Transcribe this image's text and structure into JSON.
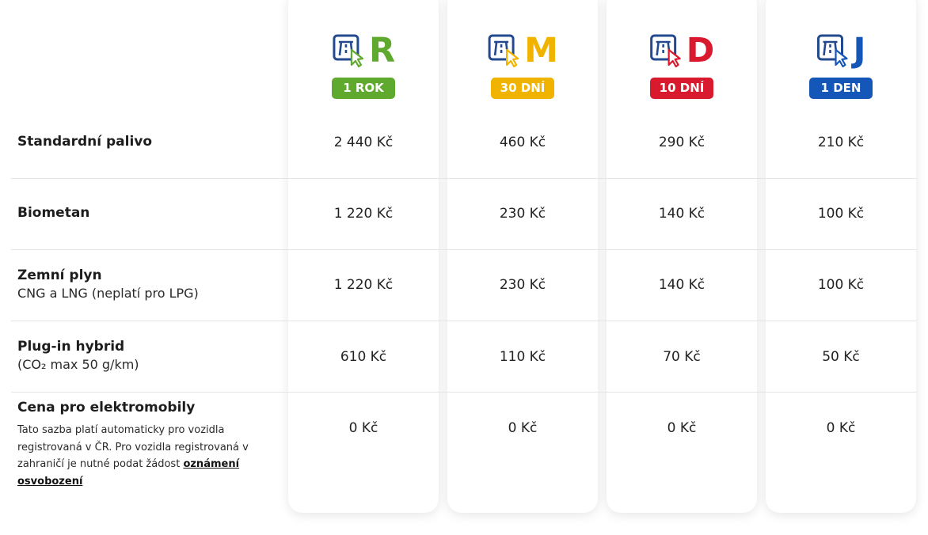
{
  "plans": [
    {
      "letter": "R",
      "badge": "1 ROK",
      "color": "#5fa92e"
    },
    {
      "letter": "M",
      "badge": "30 DNÍ",
      "color": "#f0b400"
    },
    {
      "letter": "D",
      "badge": "10 DNÍ",
      "color": "#d9192e"
    },
    {
      "letter": "J",
      "badge": "1 DEN",
      "color": "#1457b8"
    }
  ],
  "icon": "highway-ticket-cursor-icon",
  "rows": [
    {
      "title": "Standardní palivo",
      "prices": [
        "2 440 Kč",
        "460 Kč",
        "290 Kč",
        "210 Kč"
      ]
    },
    {
      "title": "Biometan",
      "prices": [
        "1 220 Kč",
        "230 Kč",
        "140 Kč",
        "100 Kč"
      ]
    },
    {
      "title": "Zemní plyn",
      "subtitle": "CNG a LNG (neplatí pro LPG)",
      "prices": [
        "1 220 Kč",
        "230 Kč",
        "140 Kč",
        "100 Kč"
      ]
    },
    {
      "title": "Plug-in hybrid",
      "subtitle": "(CO₂ max 50 g/km)",
      "prices": [
        "610 Kč",
        "110 Kč",
        "70 Kč",
        "50 Kč"
      ]
    },
    {
      "title": "Cena pro elektromobily",
      "note": "Tato sazba platí automaticky pro vozidla registrovaná v ČR. Pro vozidla registrovaná v zahraničí je nutné podat žádost",
      "note_link": "oznámení osvobození",
      "prices": [
        "0 Kč",
        "0 Kč",
        "0 Kč",
        "0 Kč"
      ]
    }
  ]
}
